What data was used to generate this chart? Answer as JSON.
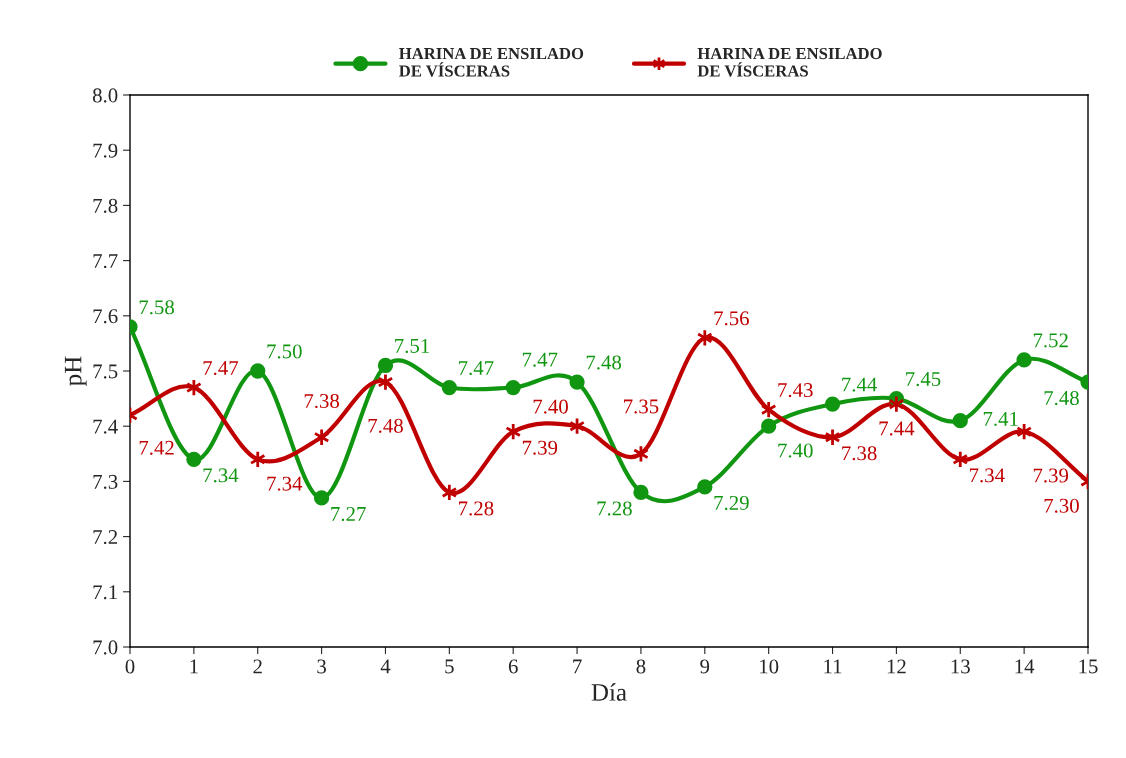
{
  "chart_data": {
    "type": "line",
    "xlabel": "Día",
    "ylabel": "pH",
    "x": [
      0,
      1,
      2,
      3,
      4,
      5,
      6,
      7,
      8,
      9,
      10,
      11,
      12,
      13,
      14,
      15
    ],
    "series": [
      {
        "name": "HARINA DE ENSILADO\nDE VÍSCERAS",
        "color": "#119611",
        "marker": "circle",
        "values": [
          7.58,
          7.34,
          7.5,
          7.27,
          7.51,
          7.47,
          7.47,
          7.48,
          7.28,
          7.29,
          7.4,
          7.44,
          7.45,
          7.41,
          7.52,
          7.48
        ],
        "value_labels": [
          "7.58",
          "7.34",
          "7.50",
          "7.27",
          "7.51",
          "7.47",
          "7.47",
          "7.48",
          "7.28",
          "7.29",
          "7.40",
          "7.44",
          "7.45",
          "7.41",
          "7.52",
          "7.48"
        ]
      },
      {
        "name": "HARINA DE ENSILADO\nDE VÍSCERAS",
        "color": "#c00000",
        "marker": "cross",
        "values": [
          7.42,
          7.47,
          7.34,
          7.38,
          7.48,
          7.28,
          7.39,
          7.4,
          7.35,
          7.56,
          7.43,
          7.38,
          7.44,
          7.34,
          7.39,
          7.3
        ],
        "value_labels": [
          "7.42",
          "7.47",
          "7.34",
          "7.38",
          "7.48",
          "7.28",
          "7.39",
          "7.40",
          "7.35",
          "7.56",
          "7.43",
          "7.38",
          "7.44",
          "7.34",
          "7.39",
          "7.30"
        ]
      }
    ],
    "xlim": [
      0,
      15
    ],
    "xticks": [
      0,
      1,
      2,
      3,
      4,
      5,
      6,
      7,
      8,
      9,
      10,
      11,
      12,
      13,
      14,
      15
    ],
    "ylim": [
      7.0,
      8.0
    ],
    "yticks": [
      {
        "value": 7.0,
        "label": "7.0"
      },
      7.1,
      7.2,
      7.3,
      7.4,
      7.5,
      7.6,
      7.7,
      7.8,
      7.9,
      {
        "value": 8.0,
        "label": "8.0"
      }
    ],
    "grid": false,
    "legend": "top",
    "line_style": "solid"
  }
}
